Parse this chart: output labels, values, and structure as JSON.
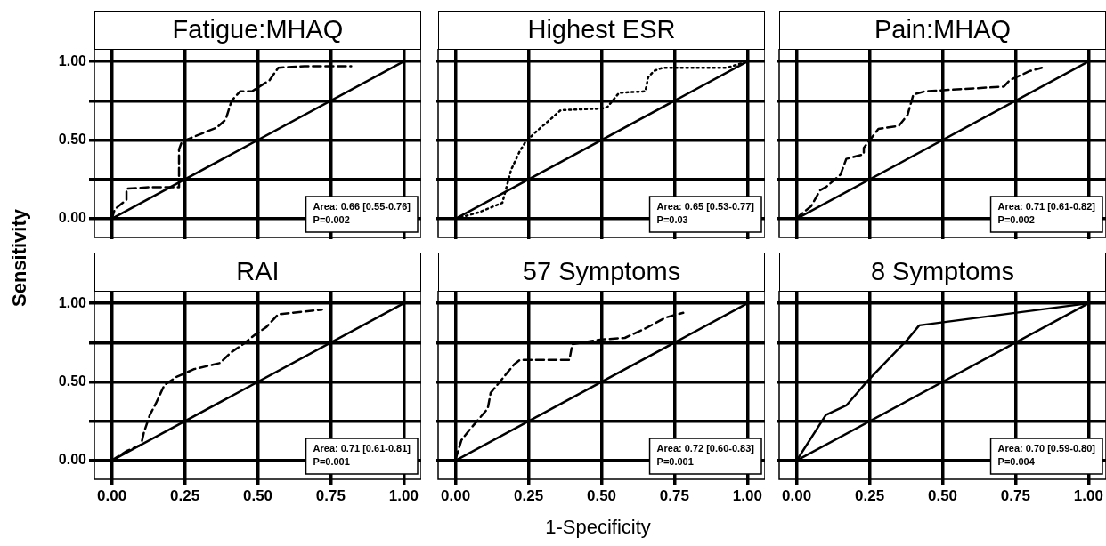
{
  "chart_data": [
    {
      "type": "line",
      "title": "Fatigue:MHAQ",
      "ylabel": "Sensitivity",
      "xlim": [
        -0.06,
        1.06
      ],
      "ylim": [
        -0.12,
        1.08
      ],
      "xticks": [
        {
          "value": 0,
          "label": null
        },
        {
          "value": 0.25,
          "label": null
        },
        {
          "value": 0.5,
          "label": null
        },
        {
          "value": 0.75,
          "label": null
        },
        {
          "value": 1,
          "label": null
        }
      ],
      "yticks": [
        {
          "value": 0,
          "label": "0.00"
        },
        {
          "value": 0.25,
          "label": null
        },
        {
          "value": 0.5,
          "label": "0.50"
        },
        {
          "value": 0.75,
          "label": null
        },
        {
          "value": 1,
          "label": "1.00"
        }
      ],
      "grid": true,
      "legend": false,
      "marker": "none",
      "tick_labels": "y",
      "annotations": [
        "Area: 0.66 [0.55-0.76]",
        "P=0.002"
      ],
      "series": [
        {
          "color": "#000000",
          "line_style": "dashed",
          "x": [
            0,
            0.01,
            0.05,
            0.05,
            0.13,
            0.23,
            0.23,
            0.24,
            0.36,
            0.39,
            0.41,
            0.44,
            0.48,
            0.54,
            0.57,
            0.66,
            0.82
          ],
          "values": [
            0,
            0.06,
            0.12,
            0.19,
            0.2,
            0.2,
            0.44,
            0.49,
            0.58,
            0.63,
            0.75,
            0.81,
            0.81,
            0.88,
            0.96,
            0.97,
            0.97
          ]
        },
        {
          "color": "#000000",
          "line_style": "solid",
          "x": [
            0,
            1
          ],
          "values": [
            0,
            1
          ]
        }
      ]
    },
    {
      "type": "line",
      "title": "Highest ESR",
      "xlim": [
        -0.06,
        1.06
      ],
      "ylim": [
        -0.12,
        1.08
      ],
      "xticks": [
        {
          "value": 0,
          "label": null
        },
        {
          "value": 0.25,
          "label": null
        },
        {
          "value": 0.5,
          "label": null
        },
        {
          "value": 0.75,
          "label": null
        },
        {
          "value": 1,
          "label": null
        }
      ],
      "yticks": [
        {
          "value": 0,
          "label": null
        },
        {
          "value": 0.25,
          "label": null
        },
        {
          "value": 0.5,
          "label": null
        },
        {
          "value": 0.75,
          "label": null
        },
        {
          "value": 1,
          "label": null
        }
      ],
      "grid": true,
      "legend": false,
      "marker": "none",
      "tick_labels": false,
      "annotations": [
        "Area: 0.65 [0.53-0.77]",
        "P=0.03"
      ],
      "series": [
        {
          "color": "#000000",
          "line_style": "dotted",
          "x": [
            0,
            0.08,
            0.16,
            0.19,
            0.22,
            0.24,
            0.28,
            0.33,
            0.36,
            0.5,
            0.52,
            0.56,
            0.65,
            0.66,
            0.68,
            0.71,
            0.93,
            1
          ],
          "values": [
            0,
            0.04,
            0.1,
            0.31,
            0.43,
            0.49,
            0.56,
            0.64,
            0.69,
            0.7,
            0.71,
            0.8,
            0.81,
            0.9,
            0.94,
            0.96,
            0.96,
            1
          ]
        },
        {
          "color": "#000000",
          "line_style": "solid",
          "x": [
            0,
            1
          ],
          "values": [
            0,
            1
          ]
        }
      ]
    },
    {
      "type": "line",
      "title": "Pain:MHAQ",
      "xlim": [
        -0.06,
        1.06
      ],
      "ylim": [
        -0.12,
        1.08
      ],
      "xticks": [
        {
          "value": 0,
          "label": null
        },
        {
          "value": 0.25,
          "label": null
        },
        {
          "value": 0.5,
          "label": null
        },
        {
          "value": 0.75,
          "label": null
        },
        {
          "value": 1,
          "label": null
        }
      ],
      "yticks": [
        {
          "value": 0,
          "label": null
        },
        {
          "value": 0.25,
          "label": null
        },
        {
          "value": 0.5,
          "label": null
        },
        {
          "value": 0.75,
          "label": null
        },
        {
          "value": 1,
          "label": null
        }
      ],
      "grid": true,
      "legend": false,
      "marker": "none",
      "tick_labels": false,
      "annotations": [
        "Area: 0.71 [0.61-0.82]",
        "P=0.002"
      ],
      "series": [
        {
          "color": "#000000",
          "line_style": "dashed",
          "x": [
            0,
            0.01,
            0.05,
            0.08,
            0.1,
            0.15,
            0.17,
            0.23,
            0.23,
            0.28,
            0.35,
            0.38,
            0.4,
            0.44,
            0.71,
            0.73,
            0.8,
            0.84
          ],
          "values": [
            0,
            0.02,
            0.08,
            0.18,
            0.2,
            0.28,
            0.38,
            0.41,
            0.45,
            0.57,
            0.59,
            0.66,
            0.79,
            0.81,
            0.84,
            0.88,
            0.94,
            0.96
          ]
        },
        {
          "color": "#000000",
          "line_style": "solid",
          "x": [
            0,
            1
          ],
          "values": [
            0,
            1
          ]
        }
      ]
    },
    {
      "type": "line",
      "title": "RAI",
      "xlim": [
        -0.06,
        1.06
      ],
      "ylim": [
        -0.12,
        1.08
      ],
      "xticks": [
        {
          "value": 0,
          "label": "0.00"
        },
        {
          "value": 0.25,
          "label": "0.25"
        },
        {
          "value": 0.5,
          "label": "0.50"
        },
        {
          "value": 0.75,
          "label": "0.75"
        },
        {
          "value": 1,
          "label": "1.00"
        }
      ],
      "yticks": [
        {
          "value": 0,
          "label": "0.00"
        },
        {
          "value": 0.25,
          "label": null
        },
        {
          "value": 0.5,
          "label": "0.50"
        },
        {
          "value": 0.75,
          "label": null
        },
        {
          "value": 1,
          "label": "1.00"
        }
      ],
      "grid": true,
      "legend": false,
      "marker": "none",
      "annotations": [
        "Area: 0.71 [0.61-0.81]",
        "P=0.001"
      ],
      "series": [
        {
          "color": "#000000",
          "line_style": "dashed",
          "x": [
            0,
            0.05,
            0.1,
            0.11,
            0.13,
            0.15,
            0.18,
            0.22,
            0.28,
            0.37,
            0.41,
            0.45,
            0.49,
            0.53,
            0.57,
            0.62,
            0.72
          ],
          "values": [
            0,
            0.06,
            0.1,
            0.18,
            0.29,
            0.36,
            0.48,
            0.53,
            0.58,
            0.62,
            0.69,
            0.74,
            0.8,
            0.85,
            0.93,
            0.94,
            0.96
          ]
        },
        {
          "color": "#000000",
          "line_style": "solid",
          "x": [
            0,
            1
          ],
          "values": [
            0,
            1
          ]
        }
      ]
    },
    {
      "type": "line",
      "title": "57 Symptoms",
      "xlabel": "1-Specificity",
      "xlim": [
        -0.06,
        1.06
      ],
      "ylim": [
        -0.12,
        1.08
      ],
      "xticks": [
        {
          "value": 0,
          "label": "0.00"
        },
        {
          "value": 0.25,
          "label": "0.25"
        },
        {
          "value": 0.5,
          "label": "0.50"
        },
        {
          "value": 0.75,
          "label": "0.75"
        },
        {
          "value": 1,
          "label": "1.00"
        }
      ],
      "yticks": [
        {
          "value": 0,
          "label": null
        },
        {
          "value": 0.25,
          "label": null
        },
        {
          "value": 0.5,
          "label": null
        },
        {
          "value": 0.75,
          "label": null
        },
        {
          "value": 1,
          "label": null
        }
      ],
      "grid": true,
      "legend": false,
      "marker": "none",
      "tick_labels": "x",
      "annotations": [
        "Area: 0.72 [0.60-0.83]",
        "P=0.001"
      ],
      "series": [
        {
          "color": "#000000",
          "line_style": "dashed",
          "x": [
            0,
            0.02,
            0.05,
            0.11,
            0.12,
            0.16,
            0.2,
            0.22,
            0.39,
            0.4,
            0.5,
            0.58,
            0.65,
            0.72,
            0.78
          ],
          "values": [
            0.01,
            0.13,
            0.2,
            0.33,
            0.43,
            0.52,
            0.61,
            0.64,
            0.64,
            0.74,
            0.77,
            0.78,
            0.84,
            0.91,
            0.94
          ]
        },
        {
          "color": "#000000",
          "line_style": "solid",
          "x": [
            0,
            1
          ],
          "values": [
            0,
            1
          ]
        }
      ]
    },
    {
      "type": "line",
      "title": "8 Symptoms",
      "xlim": [
        -0.06,
        1.06
      ],
      "ylim": [
        -0.12,
        1.08
      ],
      "xticks": [
        {
          "value": 0,
          "label": "0.00"
        },
        {
          "value": 0.25,
          "label": "0.25"
        },
        {
          "value": 0.5,
          "label": "0.50"
        },
        {
          "value": 0.75,
          "label": "0.75"
        },
        {
          "value": 1,
          "label": "1.00"
        }
      ],
      "yticks": [
        {
          "value": 0,
          "label": null
        },
        {
          "value": 0.25,
          "label": null
        },
        {
          "value": 0.5,
          "label": null
        },
        {
          "value": 0.75,
          "label": null
        },
        {
          "value": 1,
          "label": null
        }
      ],
      "grid": true,
      "legend": false,
      "marker": "none",
      "tick_labels": "x",
      "annotations": [
        "Area: 0.70 [0.59-0.80]",
        "P=0.004"
      ],
      "series": [
        {
          "color": "#000000",
          "line_style": "solid",
          "x": [
            0,
            0.1,
            0.17,
            0.24,
            0.38,
            0.42,
            1
          ],
          "values": [
            0,
            0.29,
            0.35,
            0.5,
            0.77,
            0.86,
            1
          ]
        },
        {
          "color": "#000000",
          "line_style": "solid",
          "x": [
            0,
            1
          ],
          "values": [
            0,
            1
          ]
        }
      ]
    }
  ]
}
